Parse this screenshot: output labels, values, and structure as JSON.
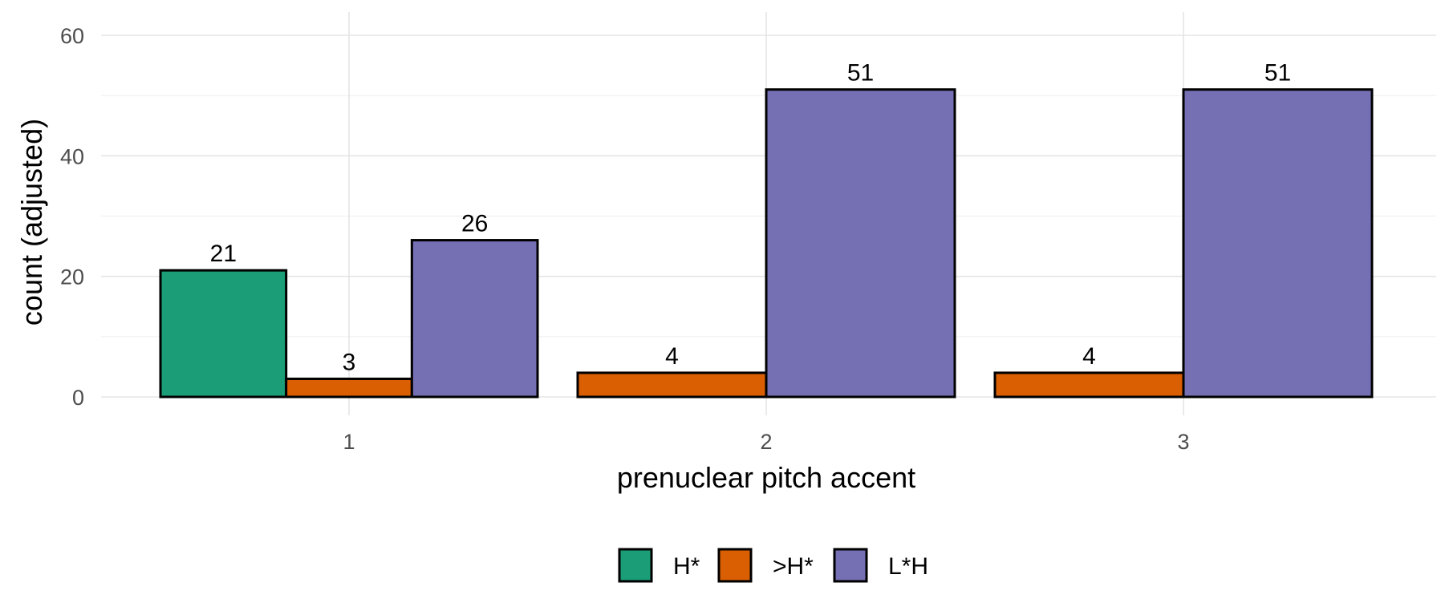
{
  "chart_data": {
    "type": "bar",
    "title": "",
    "xlabel": "prenuclear pitch accent",
    "ylabel": "count (adjusted)",
    "categories": [
      "1",
      "2",
      "3"
    ],
    "ylim": [
      0,
      60
    ],
    "yticks": [
      0,
      20,
      40,
      60
    ],
    "grid": true,
    "legend_position": "bottom",
    "series": [
      {
        "name": "H*",
        "color": "#1b9e77",
        "values": [
          21,
          null,
          null
        ],
        "labels": [
          "21",
          "",
          ""
        ]
      },
      {
        "name": ">H*",
        "color": "#d95f02",
        "values": [
          3,
          4,
          4
        ],
        "labels": [
          "3",
          "4",
          "4"
        ]
      },
      {
        "name": "L*H",
        "color": "#7570b3",
        "values": [
          26,
          51,
          51
        ],
        "labels": [
          "26",
          "51",
          "51"
        ]
      }
    ]
  }
}
